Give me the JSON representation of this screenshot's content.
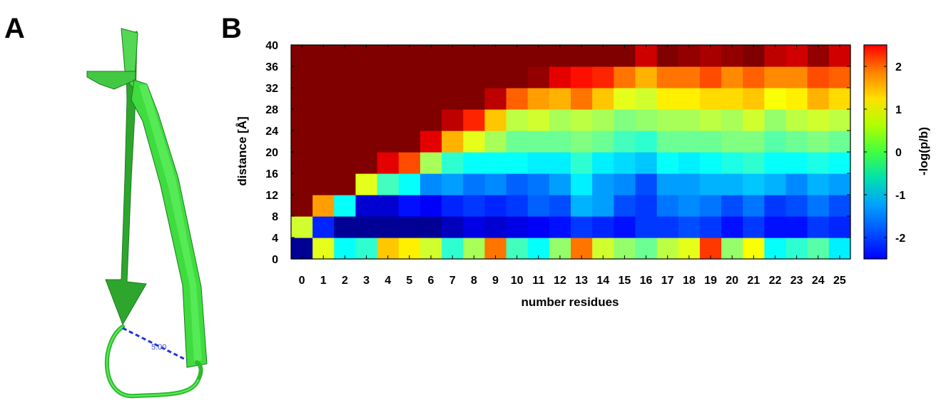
{
  "panels": {
    "a": "A",
    "b": "B"
  },
  "structure": {
    "distance_label": "5.00",
    "ribbon_color": "#3fdc3f",
    "distance_line_color": "#1f35d6"
  },
  "chart_data": {
    "type": "heatmap",
    "title": "",
    "xlabel": "number residues",
    "ylabel": "distance [Å]",
    "colorbar_label": "-log(p/b)",
    "x": [
      0,
      1,
      2,
      3,
      4,
      5,
      6,
      7,
      8,
      9,
      10,
      11,
      12,
      13,
      14,
      15,
      16,
      17,
      18,
      19,
      20,
      21,
      22,
      23,
      24,
      25
    ],
    "x_tick_labels": [
      "0",
      "1",
      "2",
      "3",
      "4",
      "5",
      "6",
      "7",
      "8",
      "9",
      "10",
      "11",
      "12",
      "13",
      "14",
      "15",
      "16",
      "17",
      "18",
      "19",
      "20",
      "21",
      "22",
      "23",
      "24",
      "25"
    ],
    "y_bins": [
      0,
      4,
      8,
      12,
      16,
      20,
      24,
      28,
      32,
      36
    ],
    "y_tick_labels": [
      "0",
      "4",
      "8",
      "12",
      "16",
      "20",
      "24",
      "28",
      "32",
      "36",
      "40"
    ],
    "ylim": [
      0,
      40
    ],
    "color_scale": {
      "min": -2.5,
      "max": 2.5,
      "colormap": "jet",
      "ticks": [
        2,
        1,
        0,
        -1,
        -2
      ],
      "tick_labels": [
        "2",
        "1",
        "0",
        "-1",
        "-2"
      ]
    },
    "values": [
      [
        -2.4,
        0.5,
        -0.6,
        -0.4,
        0.9,
        0.7,
        0.4,
        -0.4,
        0.2,
        1.3,
        -0.3,
        -0.6,
        0.1,
        1.3,
        0.4,
        0.1,
        -0.1,
        0.3,
        0.5,
        1.6,
        0.1,
        0.6,
        -0.6,
        -0.4,
        -0.2,
        -0.7
      ],
      [
        0.4,
        -1.7,
        -2.4,
        -2.4,
        -2.4,
        -2.4,
        -2.4,
        -2.2,
        -2.0,
        -2.1,
        -2.0,
        -1.9,
        -1.8,
        -1.6,
        -1.7,
        -1.8,
        -1.6,
        -1.6,
        -1.5,
        -1.6,
        -1.8,
        -1.6,
        -1.8,
        -1.8,
        -1.6,
        -1.7
      ],
      [
        2.5,
        1.1,
        -0.6,
        -2.1,
        -2.1,
        -1.8,
        -1.9,
        -1.7,
        -1.6,
        -1.7,
        -1.6,
        -1.4,
        -1.5,
        -1.0,
        -1.1,
        -1.5,
        -1.6,
        -1.3,
        -1.2,
        -1.3,
        -1.5,
        -1.3,
        -1.6,
        -1.5,
        -1.3,
        -1.5
      ],
      [
        2.5,
        2.5,
        2.5,
        0.5,
        -0.3,
        -0.6,
        -1.2,
        -1.1,
        -1.3,
        -1.2,
        -1.4,
        -1.3,
        -1.1,
        -0.7,
        -1.1,
        -1.2,
        -1.5,
        -1.1,
        -1.1,
        -1.0,
        -1.0,
        -0.9,
        -1.0,
        -1.2,
        -1.0,
        -1.1
      ],
      [
        2.5,
        2.5,
        2.5,
        2.5,
        2.0,
        1.5,
        0.2,
        -0.4,
        -0.6,
        -0.6,
        -0.6,
        -0.7,
        -0.7,
        -0.4,
        -0.7,
        -0.8,
        -0.9,
        -0.6,
        -0.7,
        -0.6,
        -0.5,
        -0.4,
        -0.6,
        -0.6,
        -0.5,
        -0.6
      ],
      [
        2.5,
        2.5,
        2.5,
        2.5,
        2.5,
        2.5,
        2.0,
        1.0,
        0.5,
        0.2,
        -0.1,
        -0.1,
        -0.1,
        0.0,
        -0.1,
        -0.3,
        -0.4,
        -0.1,
        -0.1,
        -0.1,
        0.0,
        0.0,
        -0.2,
        -0.1,
        0.0,
        -0.1
      ],
      [
        2.5,
        2.5,
        2.5,
        2.5,
        2.5,
        2.5,
        2.5,
        2.2,
        1.7,
        0.9,
        0.3,
        0.4,
        0.2,
        0.3,
        0.2,
        0.0,
        0.1,
        0.2,
        0.2,
        0.3,
        0.2,
        0.4,
        0.1,
        0.3,
        0.4,
        0.3
      ],
      [
        2.5,
        2.5,
        2.5,
        2.5,
        2.5,
        2.5,
        2.5,
        2.5,
        2.5,
        2.2,
        1.4,
        1.1,
        1.0,
        1.3,
        0.9,
        0.5,
        0.4,
        0.7,
        0.7,
        0.8,
        0.8,
        0.9,
        0.6,
        0.7,
        1.0,
        0.8
      ],
      [
        2.5,
        2.5,
        2.5,
        2.5,
        2.5,
        2.5,
        2.5,
        2.5,
        2.5,
        2.5,
        2.5,
        2.4,
        2.0,
        1.8,
        1.7,
        1.3,
        1.0,
        1.3,
        1.3,
        1.5,
        1.2,
        1.4,
        1.2,
        1.2,
        1.5,
        1.4
      ],
      [
        2.5,
        2.5,
        2.5,
        2.5,
        2.5,
        2.5,
        2.5,
        2.5,
        2.5,
        2.5,
        2.5,
        2.5,
        2.5,
        2.5,
        2.5,
        2.5,
        2.1,
        2.5,
        2.4,
        2.3,
        2.4,
        2.5,
        2.2,
        2.1,
        2.4,
        2.1
      ]
    ]
  }
}
